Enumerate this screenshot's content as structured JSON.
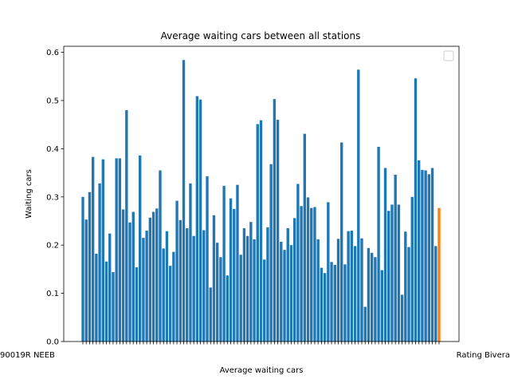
{
  "chart_data": {
    "type": "bar",
    "title": "Average waiting cars between all stations",
    "xlabel": "Average waiting cars",
    "ylabel": "Waiting cars",
    "ylim": [
      0,
      0.6125
    ],
    "yticks": [
      "0.0",
      "0.1",
      "0.2",
      "0.3",
      "0.4",
      "0.5",
      "0.6"
    ],
    "ytick_values": [
      0.0,
      0.1,
      0.2,
      0.3,
      0.4,
      0.5,
      0.6
    ],
    "legend": {
      "placement": "top-right",
      "entries": []
    },
    "grid": false,
    "colors": {
      "bars": "#1f77b4",
      "highlight": "#ff7f0e",
      "axis": "#000000"
    },
    "xtick_text_start": "90019R NEEB",
    "xtick_text_end": "Rating Bivera",
    "values": [
      0.3,
      0.253,
      0.31,
      0.383,
      0.182,
      0.328,
      0.378,
      0.166,
      0.224,
      0.144,
      0.38,
      0.38,
      0.274,
      0.48,
      0.247,
      0.269,
      0.154,
      0.386,
      0.215,
      0.23,
      0.257,
      0.269,
      0.276,
      0.355,
      0.193,
      0.229,
      0.157,
      0.186,
      0.292,
      0.252,
      0.584,
      0.235,
      0.328,
      0.219,
      0.509,
      0.502,
      0.231,
      0.343,
      0.112,
      0.262,
      0.205,
      0.175,
      0.323,
      0.137,
      0.297,
      0.275,
      0.325,
      0.18,
      0.235,
      0.219,
      0.248,
      0.212,
      0.451,
      0.459,
      0.17,
      0.237,
      0.368,
      0.503,
      0.46,
      0.207,
      0.19,
      0.235,
      0.2,
      0.256,
      0.327,
      0.281,
      0.431,
      0.299,
      0.277,
      0.279,
      0.212,
      0.153,
      0.142,
      0.289,
      0.165,
      0.159,
      0.213,
      0.413,
      0.16,
      0.229,
      0.23,
      0.198,
      0.564,
      0.214,
      0.072,
      0.194,
      0.184,
      0.175,
      0.404,
      0.148,
      0.36,
      0.271,
      0.284,
      0.346,
      0.284,
      0.097,
      0.228,
      0.196,
      0.3,
      0.546,
      0.376,
      0.356,
      0.355,
      0.347,
      0.36,
      0.198,
      0.277
    ],
    "highlight_index": 106
  }
}
